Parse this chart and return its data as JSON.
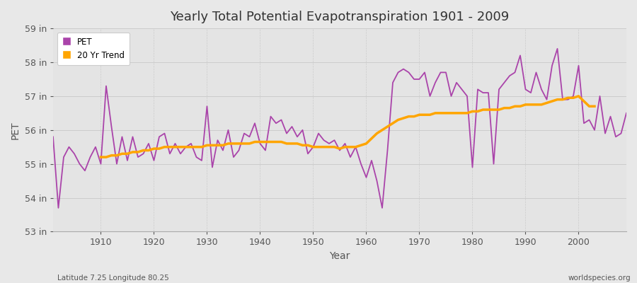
{
  "title": "Yearly Total Potential Evapotranspiration 1901 - 2009",
  "xlabel": "Year",
  "ylabel": "PET",
  "bottom_left_label": "Latitude 7.25 Longitude 80.25",
  "bottom_right_label": "worldspecies.org",
  "pet_color": "#AA44AA",
  "trend_color": "#FFA500",
  "background_color": "#E8E8E8",
  "plot_bg_color": "#E4E4E4",
  "ylim": [
    53,
    59
  ],
  "xlim": [
    1901,
    2009
  ],
  "yticks": [
    53,
    54,
    55,
    56,
    57,
    58,
    59
  ],
  "ytick_labels": [
    "53 in",
    "54 in",
    "55 in",
    "56 in",
    "57 in",
    "58 in",
    "59 in"
  ],
  "xticks": [
    1910,
    1920,
    1930,
    1940,
    1950,
    1960,
    1970,
    1980,
    1990,
    2000
  ],
  "years": [
    1901,
    1902,
    1903,
    1904,
    1905,
    1906,
    1907,
    1908,
    1909,
    1910,
    1911,
    1912,
    1913,
    1914,
    1915,
    1916,
    1917,
    1918,
    1919,
    1920,
    1921,
    1922,
    1923,
    1924,
    1925,
    1926,
    1927,
    1928,
    1929,
    1930,
    1931,
    1932,
    1933,
    1934,
    1935,
    1936,
    1937,
    1938,
    1939,
    1940,
    1941,
    1942,
    1943,
    1944,
    1945,
    1946,
    1947,
    1948,
    1949,
    1950,
    1951,
    1952,
    1953,
    1954,
    1955,
    1956,
    1957,
    1958,
    1959,
    1960,
    1961,
    1962,
    1963,
    1964,
    1965,
    1966,
    1967,
    1968,
    1969,
    1970,
    1971,
    1972,
    1973,
    1974,
    1975,
    1976,
    1977,
    1978,
    1979,
    1980,
    1981,
    1982,
    1983,
    1984,
    1985,
    1986,
    1987,
    1988,
    1989,
    1990,
    1991,
    1992,
    1993,
    1994,
    1995,
    1996,
    1997,
    1998,
    1999,
    2000,
    2001,
    2002,
    2003,
    2004,
    2005,
    2006,
    2007,
    2008,
    2009
  ],
  "pet_values": [
    55.8,
    53.7,
    55.2,
    55.5,
    55.3,
    55.0,
    54.8,
    55.2,
    55.5,
    55.0,
    57.3,
    56.1,
    55.0,
    55.8,
    55.1,
    55.8,
    55.2,
    55.3,
    55.6,
    55.1,
    55.8,
    55.9,
    55.3,
    55.6,
    55.3,
    55.5,
    55.6,
    55.2,
    55.1,
    56.7,
    54.9,
    55.7,
    55.4,
    56.0,
    55.2,
    55.4,
    55.9,
    55.8,
    56.2,
    55.6,
    55.4,
    56.4,
    56.2,
    56.3,
    55.9,
    56.1,
    55.8,
    56.0,
    55.3,
    55.5,
    55.9,
    55.7,
    55.6,
    55.7,
    55.4,
    55.6,
    55.2,
    55.5,
    55.0,
    54.6,
    55.1,
    54.5,
    53.7,
    55.4,
    57.4,
    57.7,
    57.8,
    57.7,
    57.5,
    57.5,
    57.7,
    57.0,
    57.4,
    57.7,
    57.7,
    57.0,
    57.4,
    57.2,
    57.0,
    54.9,
    57.2,
    57.1,
    57.1,
    55.0,
    57.2,
    57.4,
    57.6,
    57.7,
    58.2,
    57.2,
    57.1,
    57.7,
    57.2,
    56.9,
    57.9,
    58.4,
    56.9,
    56.9,
    57.0,
    57.9,
    56.2,
    56.3,
    56.0,
    57.0,
    55.9,
    56.4,
    55.8,
    55.9,
    56.5
  ],
  "trend_values": [
    null,
    null,
    null,
    null,
    null,
    null,
    null,
    null,
    null,
    55.2,
    55.2,
    55.25,
    55.25,
    55.3,
    55.3,
    55.35,
    55.35,
    55.4,
    55.4,
    55.45,
    55.45,
    55.5,
    55.5,
    55.5,
    55.5,
    55.5,
    55.5,
    55.5,
    55.5,
    55.55,
    55.55,
    55.55,
    55.55,
    55.6,
    55.6,
    55.6,
    55.6,
    55.6,
    55.65,
    55.65,
    55.65,
    55.65,
    55.65,
    55.65,
    55.6,
    55.6,
    55.6,
    55.55,
    55.55,
    55.5,
    55.5,
    55.5,
    55.5,
    55.5,
    55.45,
    55.5,
    55.5,
    55.5,
    55.55,
    55.6,
    55.75,
    55.9,
    56.0,
    56.1,
    56.2,
    56.3,
    56.35,
    56.4,
    56.4,
    56.45,
    56.45,
    56.45,
    56.5,
    56.5,
    56.5,
    56.5,
    56.5,
    56.5,
    56.5,
    56.55,
    56.55,
    56.6,
    56.6,
    56.6,
    56.6,
    56.65,
    56.65,
    56.7,
    56.7,
    56.75,
    56.75,
    56.75,
    56.75,
    56.8,
    56.85,
    56.9,
    56.9,
    56.95,
    56.95,
    57.0,
    56.85,
    56.7,
    56.7,
    null,
    null,
    null,
    null,
    null,
    null
  ]
}
